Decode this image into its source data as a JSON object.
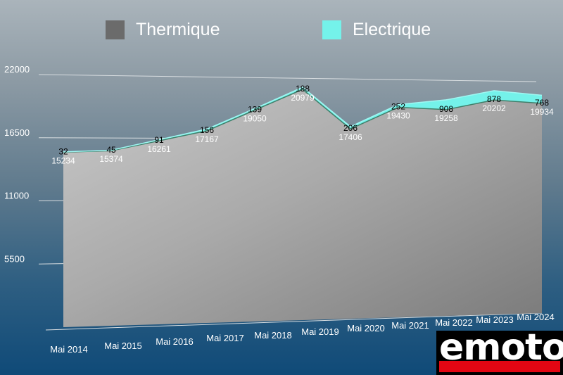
{
  "legend": {
    "thermique": "Thermique",
    "electrique": "Electrique"
  },
  "colors": {
    "thermique": "#6b6b6b",
    "electrique": "#74f2ea",
    "surface_light": "#bdbdbd",
    "surface_dark": "#7f7f7f"
  },
  "chart_data": {
    "type": "area",
    "stacked": true,
    "categories": [
      "Mai 2014",
      "Mai 2015",
      "Mai 2016",
      "Mai 2017",
      "Mai 2018",
      "Mai 2019",
      "Mai 2020",
      "Mai 2021",
      "Mai 2022",
      "Mai 2023",
      "Mai 2024"
    ],
    "series": [
      {
        "name": "Thermique",
        "values": [
          15234,
          15374,
          16261,
          17167,
          19050,
          20979,
          17406,
          19430,
          19258,
          20202,
          19934
        ]
      },
      {
        "name": "Electrique",
        "values": [
          32,
          45,
          91,
          156,
          139,
          188,
          206,
          252,
          908,
          878,
          768
        ]
      }
    ],
    "data_labels": {
      "thermique": [
        "15234",
        "15374",
        "16261",
        "17167",
        "19050",
        "20979",
        "17406",
        "19430",
        "19258",
        "20202",
        "19934"
      ],
      "electrique": [
        "32",
        "45",
        "91",
        "156",
        "139",
        "188",
        "206",
        "252",
        "908",
        "878",
        "768"
      ]
    },
    "y_ticks": [
      "5500",
      "11000",
      "16500",
      "22000"
    ],
    "ylim": [
      0,
      22000
    ],
    "grid": true,
    "legend_position": "top"
  },
  "logo": {
    "text": "emoto"
  }
}
